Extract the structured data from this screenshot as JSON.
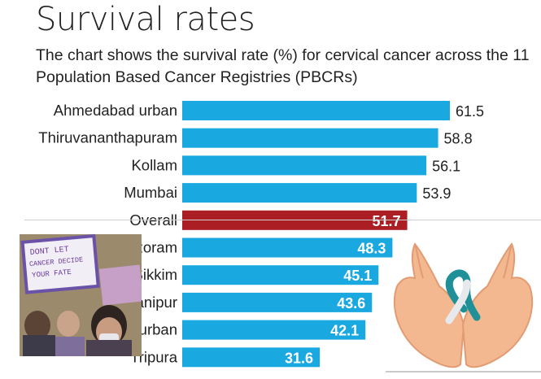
{
  "header": {
    "title": "Survival rates",
    "subtitle": "The chart shows the survival rate (%) for cervical cancer across the 11 Population Based Cancer Registries (PBCRs)"
  },
  "chart_data": {
    "type": "bar",
    "orientation": "horizontal",
    "categories": [
      "Ahmedabad urban",
      "Thiruvananthapuram",
      "Kollam",
      "Mumbai",
      "Overall",
      "Mizoram",
      "Sikkim",
      "Manipur",
      "Tamil Nadu urban",
      "Tripura"
    ],
    "values": [
      61.5,
      58.8,
      56.1,
      53.9,
      51.7,
      48.3,
      45.1,
      43.6,
      42.1,
      31.6
    ],
    "value_labels": [
      "61.5",
      "58.8",
      "56.1",
      "53.9",
      "51.7",
      "48.3",
      "45.1",
      "43.6",
      "42.1",
      "31.6"
    ],
    "highlight_index": 4,
    "xlim": [
      0,
      65
    ],
    "grid": false,
    "colors": {
      "bar": "#1aa8e0",
      "highlight": "#aa1e24"
    }
  },
  "images": {
    "protest_photo_sign": "DONT LET CANCER DECIDE YOUR FATE",
    "illustration": "ribbon-in-hands"
  }
}
